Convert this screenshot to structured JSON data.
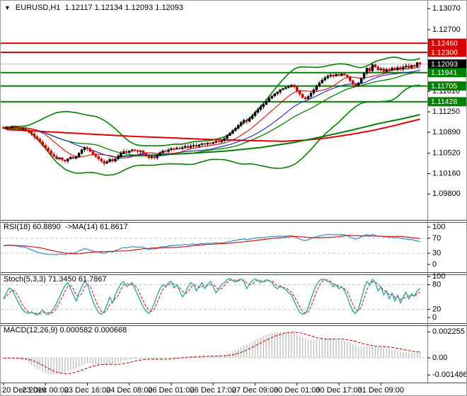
{
  "header": {
    "symbol": "EURUSD,H1",
    "ohlc": "1.12117 1.12134 1.12093 1.12093",
    "dropdown_icon": "▼"
  },
  "colors": {
    "resistance": "#e00000",
    "support": "#008000",
    "current_line": "#b9b9b9",
    "bull_candle": "#000000",
    "bear_candle": "#d40000",
    "bb_band": "#008000",
    "ma_blue": "#2222bb",
    "ma_red_fast": "#cc1111",
    "ma_red_slow": "#e00000",
    "ma_green_slow": "#008000",
    "rsi_line": "#3a87c8",
    "rsi_ma": "#cc1a1a",
    "stoch_k": "#22a49c",
    "stoch_d": "#d42222",
    "macd_hist": "#bfbfbf",
    "macd_signal": "#d02020",
    "grid_dash": "#c8c8c8",
    "axis_border": "#808080",
    "separator": "#4a4a4a",
    "badge_red": "#d80000",
    "badge_green": "#008000",
    "badge_black": "#000000",
    "badge_text": "#ffffff",
    "text": "#000000"
  },
  "time_axis": {
    "labels": [
      "20 Dec 2019",
      "23 Dec 00:00",
      "23 Dec 16:00",
      "24 Dec 08:00",
      "26 Dec 01:00",
      "26 Dec 17:00",
      "27 Dec 09:00",
      "30 Dec 01:00",
      "30 Dec 17:00",
      "31 Dec 09:00"
    ],
    "bars_per_label": 15
  },
  "chart_data": [
    {
      "type": "candlestick",
      "title": "EURUSD,H1  1.12117 1.12134 1.12093 1.12093",
      "ylim": [
        1.09367,
        1.13111
      ],
      "y_axis_labels": [
        "1.13070",
        "1.12700",
        "1.11610",
        "1.11250",
        "1.10890",
        "1.10520",
        "1.10160",
        "1.09800"
      ],
      "y_axis_values": [
        1.1307,
        1.127,
        1.1161,
        1.1125,
        1.1089,
        1.1052,
        1.1016,
        1.098
      ],
      "badges": [
        {
          "text": "1.12460",
          "value": 1.1246,
          "kind": "red"
        },
        {
          "text": "1.12300",
          "value": 1.123,
          "kind": "red"
        },
        {
          "text": "1.12093",
          "value": 1.12093,
          "kind": "black"
        },
        {
          "text": "1.11941",
          "value": 1.11941,
          "kind": "green"
        },
        {
          "text": "1.11705",
          "value": 1.11705,
          "kind": "green"
        },
        {
          "text": "1.11428",
          "value": 1.11428,
          "kind": "green"
        }
      ],
      "levels": {
        "resistance": [
          1.1246,
          1.123
        ],
        "support": [
          1.11941,
          1.11705,
          1.11428
        ],
        "current": 1.12093
      },
      "overlays": {
        "bollinger": {
          "window": 34,
          "mult": 2.3
        },
        "ma_red_fast_window": 12,
        "ma_blue_window": 24,
        "slow_red_points": [
          [
            0,
            1.1094
          ],
          [
            15,
            1.109
          ],
          [
            30,
            1.1086
          ],
          [
            45,
            1.1082
          ],
          [
            60,
            1.1079
          ],
          [
            75,
            1.1076
          ],
          [
            90,
            1.1074
          ],
          [
            100,
            1.1073
          ],
          [
            108,
            1.1075
          ],
          [
            116,
            1.1079
          ],
          [
            124,
            1.1085
          ],
          [
            132,
            1.1092
          ],
          [
            140,
            1.1101
          ],
          [
            149,
            1.1112
          ]
        ],
        "slow_green_points": [
          [
            40,
            1.1046
          ],
          [
            55,
            1.1049
          ],
          [
            68,
            1.1052
          ],
          [
            80,
            1.1056
          ],
          [
            92,
            1.1062
          ],
          [
            104,
            1.1071
          ],
          [
            114,
            1.1081
          ],
          [
            124,
            1.1092
          ],
          [
            134,
            1.1104
          ],
          [
            142,
            1.1112
          ],
          [
            149,
            1.112
          ]
        ]
      },
      "closes": [
        1.1096,
        1.10975,
        1.1097,
        1.10985,
        1.1098,
        1.1097,
        1.1095,
        1.10955,
        1.1093,
        1.109,
        1.1086,
        1.1081,
        1.1077,
        1.1072,
        1.1066,
        1.1061,
        1.1056,
        1.105,
        1.1046,
        1.1042,
        1.1044,
        1.104,
        1.1038,
        1.1042,
        1.1045,
        1.1043,
        1.1046,
        1.1052,
        1.1058,
        1.1062,
        1.106,
        1.1055,
        1.105,
        1.1046,
        1.1042,
        1.1038,
        1.1034,
        1.1037,
        1.1041,
        1.1038,
        1.1042,
        1.1047,
        1.1052,
        1.1055,
        1.1053,
        1.1056,
        1.1058,
        1.1057,
        1.1055,
        1.1056,
        1.1052,
        1.1047,
        1.1044,
        1.1046,
        1.1044,
        1.1048,
        1.1053,
        1.1056,
        1.1055,
        1.1058,
        1.106,
        1.1059,
        1.1061,
        1.106,
        1.1062,
        1.1064,
        1.1062,
        1.1065,
        1.1066,
        1.1064,
        1.1067,
        1.1069,
        1.1068,
        1.107,
        1.1069,
        1.1071,
        1.1073,
        1.1072,
        1.1074,
        1.1078,
        1.1083,
        1.1087,
        1.1092,
        1.1096,
        1.1101,
        1.1106,
        1.111,
        1.1108,
        1.1113,
        1.1118,
        1.1124,
        1.1129,
        1.1134,
        1.1138,
        1.1143,
        1.1149,
        1.1153,
        1.1157,
        1.116,
        1.1164,
        1.1166,
        1.1168,
        1.117,
        1.1172,
        1.1169,
        1.1162,
        1.1156,
        1.115,
        1.1148,
        1.1152,
        1.1158,
        1.1164,
        1.117,
        1.1176,
        1.1181,
        1.1185,
        1.1188,
        1.119,
        1.1188,
        1.1191,
        1.1189,
        1.1192,
        1.119,
        1.1187,
        1.118,
        1.1174,
        1.1171,
        1.1176,
        1.1184,
        1.1193,
        1.1202,
        1.1197,
        1.1208,
        1.1204,
        1.1199,
        1.1201,
        1.1196,
        1.12,
        1.1198,
        1.1202,
        1.1199,
        1.1203,
        1.12,
        1.1204,
        1.1206,
        1.1203,
        1.1207,
        1.1205,
        1.12117,
        1.12093
      ]
    },
    {
      "type": "line",
      "label": "RSI(18) 60.8890  ->MA(14) 61.8617",
      "name": "RSI",
      "ylim": [
        0,
        100
      ],
      "levels": [
        70,
        30
      ],
      "y_axis_labels": [
        "100",
        "70",
        "30",
        "0"
      ],
      "y_axis_values": [
        100,
        70,
        30,
        0
      ],
      "ma_window": 14,
      "values": [
        50,
        51,
        52,
        51,
        50,
        49,
        47,
        47,
        45,
        42,
        39,
        36,
        33,
        31,
        29,
        28,
        27,
        26,
        27,
        26,
        28,
        27,
        26,
        29,
        31,
        30,
        32,
        36,
        39,
        42,
        41,
        38,
        36,
        34,
        33,
        31,
        30,
        32,
        35,
        33,
        37,
        40,
        43,
        45,
        44,
        46,
        48,
        47,
        46,
        47,
        45,
        42,
        40,
        42,
        41,
        43,
        46,
        48,
        47,
        49,
        51,
        50,
        52,
        51,
        52,
        54,
        52,
        54,
        55,
        53,
        55,
        56,
        55,
        57,
        56,
        57,
        58,
        57,
        58,
        58,
        60,
        61,
        63,
        64,
        66,
        67,
        68,
        66,
        67,
        69,
        70,
        71,
        72,
        72,
        73,
        74,
        74,
        75,
        75,
        76,
        75,
        76,
        76,
        77,
        75,
        71,
        68,
        65,
        64,
        66,
        69,
        72,
        74,
        76,
        78,
        79,
        80,
        80,
        79,
        80,
        79,
        80,
        79,
        77,
        73,
        70,
        68,
        70,
        74,
        77,
        80,
        77,
        80,
        78,
        75,
        76,
        73,
        74,
        72,
        73,
        71,
        72,
        70,
        69,
        68,
        66,
        67,
        64,
        63,
        61
      ]
    },
    {
      "type": "line",
      "label": "Stoch(5,3,3) 71.3450 61.7867",
      "name": "Stochastic",
      "ylim": [
        0,
        100
      ],
      "levels": [
        80,
        20
      ],
      "y_axis_labels": [
        "100",
        "80",
        "20",
        "0"
      ],
      "y_axis_values": [
        100,
        80,
        20,
        0
      ],
      "signal_window": 3,
      "values": [
        45,
        60,
        72,
        68,
        55,
        40,
        28,
        18,
        12,
        10,
        14,
        9,
        6,
        12,
        18,
        10,
        7,
        13,
        22,
        35,
        50,
        65,
        78,
        85,
        70,
        55,
        40,
        60,
        75,
        88,
        80,
        60,
        40,
        25,
        12,
        8,
        15,
        30,
        50,
        35,
        55,
        70,
        82,
        88,
        75,
        80,
        85,
        70,
        55,
        40,
        25,
        15,
        10,
        20,
        35,
        55,
        70,
        80,
        75,
        85,
        88,
        72,
        80,
        65,
        50,
        60,
        75,
        85,
        80,
        65,
        75,
        85,
        70,
        80,
        88,
        75,
        60,
        70,
        80,
        85,
        92,
        95,
        90,
        86,
        92,
        94,
        88,
        70,
        82,
        90,
        94,
        90,
        85,
        88,
        92,
        90,
        85,
        75,
        70,
        78,
        72,
        68,
        60,
        55,
        40,
        25,
        12,
        8,
        10,
        25,
        45,
        65,
        80,
        90,
        94,
        92,
        88,
        85,
        75,
        80,
        70,
        75,
        65,
        50,
        30,
        15,
        10,
        22,
        45,
        70,
        88,
        80,
        93,
        85,
        65,
        75,
        55,
        65,
        45,
        60,
        40,
        55,
        35,
        50,
        62,
        45,
        58,
        52,
        65,
        71
      ]
    },
    {
      "type": "histogram",
      "label": "MACD(12,26,9) 0.000582 0.000668",
      "name": "MACD",
      "ylim": [
        -0.0017,
        0.00245
      ],
      "y_axis_labels": [
        "0.002255",
        "0.00",
        "-0.001486"
      ],
      "y_axis_values": [
        0.002255,
        0,
        -0.001486
      ],
      "signal_window": 9,
      "values": [
        -5e-05,
        -2e-05,
        0,
        -3e-05,
        -6e-05,
        -0.0001,
        -0.00015,
        -0.00018,
        -0.00025,
        -0.0005,
        -0.00065,
        -0.0008,
        -0.00095,
        -0.0011,
        -0.00122,
        -0.00132,
        -0.0014,
        -0.00146,
        -0.00148,
        -0.00145,
        -0.0014,
        -0.00134,
        -0.00128,
        -0.0012,
        -0.0011,
        -0.001,
        -0.0009,
        -0.00078,
        -0.00066,
        -0.00056,
        -0.0005,
        -0.0005,
        -0.00053,
        -0.00057,
        -0.0006,
        -0.00063,
        -0.00065,
        -0.00062,
        -0.00058,
        -0.00055,
        -0.00048,
        -0.0004,
        -0.00033,
        -0.00026,
        -0.00022,
        -0.00017,
        -0.00013,
        -8e-05,
        -8e-05,
        -7e-05,
        -9e-05,
        -0.00012,
        -0.00015,
        -0.00015,
        -0.00016,
        -0.00014,
        -0.0001,
        -6e-05,
        -4e-05,
        -1e-05,
        2e-05,
        3e-05,
        5e-05,
        6e-05,
        8e-05,
        0.0001,
        0.0001,
        0.00012,
        0.00013,
        0.00012,
        0.00014,
        0.00015,
        0.00015,
        0.00016,
        0.00016,
        0.00017,
        0.00018,
        0.00018,
        0.00019,
        0.00024,
        0.00032,
        0.00042,
        0.00054,
        0.00066,
        0.0008,
        0.00094,
        0.00108,
        0.00115,
        0.00126,
        0.0014,
        0.00154,
        0.00168,
        0.0018,
        0.0019,
        0.002,
        0.0021,
        0.00216,
        0.00221,
        0.00224,
        0.00226,
        0.00225,
        0.00224,
        0.00222,
        0.0022,
        0.00215,
        0.00205,
        0.00192,
        0.00178,
        0.00165,
        0.00158,
        0.00156,
        0.00157,
        0.0016,
        0.00163,
        0.00166,
        0.00168,
        0.00168,
        0.00167,
        0.00163,
        0.0016,
        0.00155,
        0.00151,
        0.00146,
        0.00139,
        0.00129,
        0.00118,
        0.00107,
        0.001,
        0.00098,
        0.00099,
        0.00102,
        0.001,
        0.00102,
        0.00101,
        0.00097,
        0.00093,
        0.00087,
        0.00082,
        0.00076,
        0.00072,
        0.00066,
        0.00063,
        0.00055,
        0.00052,
        0.00049,
        0.00047,
        0.00045,
        0.00044,
        0.00046,
        0.00058
      ]
    }
  ]
}
